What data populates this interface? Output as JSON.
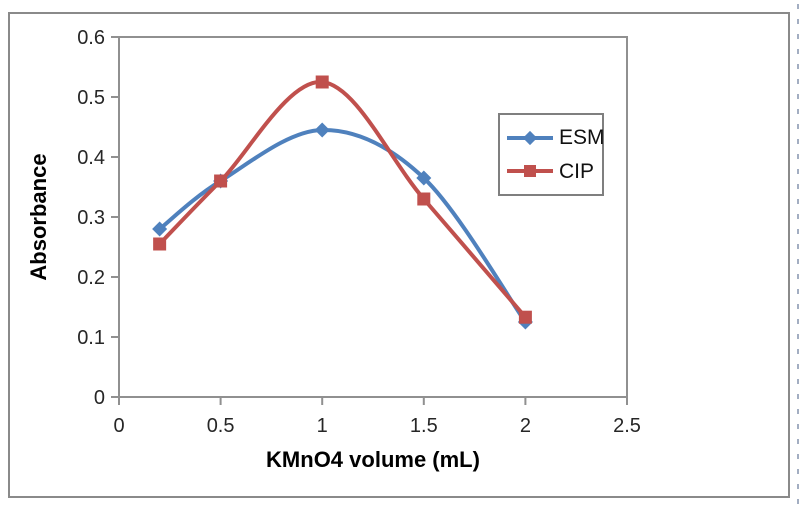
{
  "chart_data": {
    "type": "line",
    "title": "",
    "xlabel": "KMnO4 volume (mL)",
    "ylabel": "Absorbance",
    "x": [
      0.2,
      0.5,
      1,
      1.5,
      2
    ],
    "series": [
      {
        "name": "ESM",
        "color": "#4F81BD",
        "marker": "diamond",
        "values": [
          0.28,
          0.36,
          0.445,
          0.365,
          0.125
        ]
      },
      {
        "name": "CIP",
        "color": "#C0504D",
        "marker": "square",
        "values": [
          0.255,
          0.36,
          0.525,
          0.33,
          0.133
        ]
      }
    ],
    "xlim": [
      0,
      2.5
    ],
    "ylim": [
      0,
      0.6
    ],
    "x_ticks": [
      0,
      0.5,
      1,
      1.5,
      2,
      2.5
    ],
    "y_ticks": [
      0,
      0.1,
      0.2,
      0.3,
      0.4,
      0.5,
      0.6
    ],
    "grid": false,
    "smooth": true,
    "legend_position": "inside-right"
  },
  "colors": {
    "axis": "#909090",
    "frame_border": "#8a8a8a",
    "legend_border": "#7f7f7f",
    "tick_label": "#262626",
    "page_dash": "#a3aec2",
    "background": "#ffffff"
  }
}
